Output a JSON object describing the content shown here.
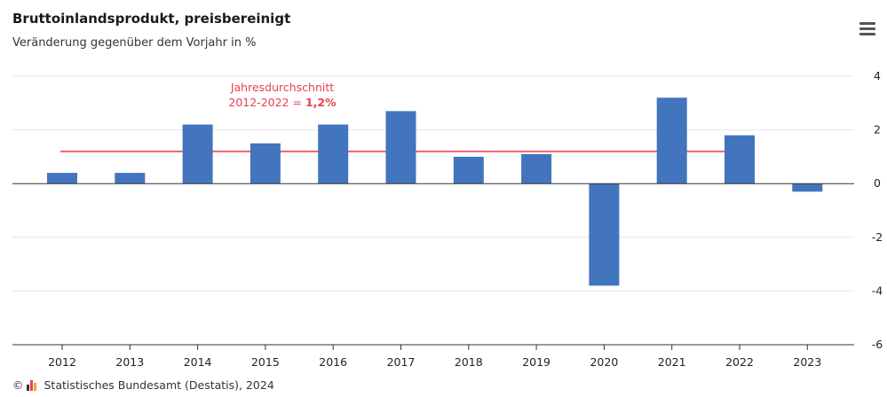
{
  "header": {
    "title": "Bruttoinlandsprodukt, preisbereinigt",
    "subtitle": "Veränderung gegenüber dem Vorjahr in %"
  },
  "menu": {
    "icon": "hamburger-menu-icon"
  },
  "footer": {
    "copyright_symbol": "©",
    "source": "Statistisches Bundesamt (Destatis), 2024",
    "logo_icon": "destatis-logo-icon"
  },
  "annotation": {
    "line1": "Jahresdurchschnitt",
    "line2_prefix": "2012-2022 = ",
    "line2_value": "1,2%"
  },
  "chart_data": {
    "type": "bar",
    "title": "Bruttoinlandsprodukt, preisbereinigt",
    "subtitle": "Veränderung gegenüber dem Vorjahr in %",
    "categories": [
      "2012",
      "2013",
      "2014",
      "2015",
      "2016",
      "2017",
      "2018",
      "2019",
      "2020",
      "2021",
      "2022",
      "2023"
    ],
    "values": [
      0.4,
      0.4,
      2.2,
      1.5,
      2.2,
      2.7,
      1.0,
      1.1,
      -3.8,
      3.2,
      1.8,
      -0.3
    ],
    "ylim": [
      -6,
      4
    ],
    "yticks": [
      4,
      2,
      0,
      -2,
      -4,
      -6
    ],
    "ytick_labels": [
      "4",
      "2",
      "0",
      "-2",
      "-4",
      "-6"
    ],
    "average_line": {
      "value": 1.2,
      "from": "2012",
      "to": "2022"
    },
    "grid": true,
    "y_axis_position": "right",
    "colors": {
      "bar": "#4275bd",
      "average": "#f0616c",
      "grid": "#e6e6e6",
      "axis": "#333333"
    }
  }
}
